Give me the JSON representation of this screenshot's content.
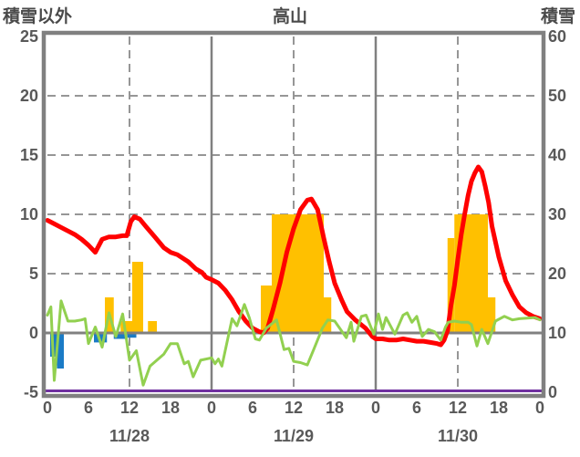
{
  "header": {
    "left_axis_title": "積雪以外",
    "chart_title": "高山",
    "right_axis_title": "積雪"
  },
  "colors": {
    "red_line": "#FF0000",
    "green_line": "#92D050",
    "orange_bars": "#FFC000",
    "blue_bars": "#1B7BC6",
    "purple_line": "#7030A0",
    "frame": "#808080",
    "grid": "#969696",
    "text": "#595959"
  },
  "chart_data": {
    "type": "line+bar",
    "title": "高山",
    "left_axis": {
      "label": "積雪以外",
      "min": -5,
      "max": 25,
      "ticks": [
        25,
        20,
        15,
        10,
        5,
        0,
        -5
      ]
    },
    "right_axis": {
      "label": "積雪",
      "min": 0,
      "max": 60,
      "ticks": [
        60,
        50,
        40,
        30,
        20,
        10,
        0
      ]
    },
    "x_axis": {
      "unit": "hour",
      "span_hours": 72,
      "ticks": [
        {
          "h": 0,
          "label": "0"
        },
        {
          "h": 6,
          "label": "6"
        },
        {
          "h": 12,
          "label": "12"
        },
        {
          "h": 18,
          "label": "18"
        },
        {
          "h": 24,
          "label": "0"
        },
        {
          "h": 30,
          "label": "6"
        },
        {
          "h": 36,
          "label": "12"
        },
        {
          "h": 42,
          "label": "18"
        },
        {
          "h": 48,
          "label": "0"
        },
        {
          "h": 54,
          "label": "6"
        },
        {
          "h": 60,
          "label": "12"
        },
        {
          "h": 66,
          "label": "18"
        },
        {
          "h": 72,
          "label": "0"
        }
      ],
      "dates": [
        {
          "h": 12,
          "label": "11/28"
        },
        {
          "h": 36,
          "label": "11/29"
        },
        {
          "h": 60,
          "label": "11/30"
        }
      ]
    },
    "grid": {
      "horizontal_dashed_values": [
        5,
        10,
        15,
        20
      ],
      "vertical_solid_hours": [
        24,
        48
      ],
      "vertical_dashed_hours": [
        12,
        36,
        60
      ],
      "zero_line_value": 0
    },
    "series": {
      "red_line": {
        "name": "temperature-red-line",
        "axis": "left",
        "points": [
          [
            0,
            9.5
          ],
          [
            1,
            9.2
          ],
          [
            2,
            8.9
          ],
          [
            3,
            8.6
          ],
          [
            4,
            8.3
          ],
          [
            5,
            7.9
          ],
          [
            6,
            7.4
          ],
          [
            7,
            6.8
          ],
          [
            8,
            7.9
          ],
          [
            9,
            8.1
          ],
          [
            10,
            8.1
          ],
          [
            11,
            8.2
          ],
          [
            11.6,
            8.2
          ],
          [
            12.2,
            9.4
          ],
          [
            12.7,
            9.8
          ],
          [
            13.5,
            9.6
          ],
          [
            14.5,
            8.9
          ],
          [
            15.7,
            8.1
          ],
          [
            17,
            7.2
          ],
          [
            18,
            6.8
          ],
          [
            19,
            6.6
          ],
          [
            20.6,
            6.0
          ],
          [
            21.7,
            5.4
          ],
          [
            22.6,
            5.1
          ],
          [
            23.2,
            4.7
          ],
          [
            24,
            4.5
          ],
          [
            25,
            4.2
          ],
          [
            26,
            3.6
          ],
          [
            27,
            2.8
          ],
          [
            28,
            1.8
          ],
          [
            29,
            1.0
          ],
          [
            30,
            0.4
          ],
          [
            31,
            0.1
          ],
          [
            31.6,
            0.0
          ],
          [
            32.2,
            0.4
          ],
          [
            33,
            2.0
          ],
          [
            34,
            4.2
          ],
          [
            35,
            6.8
          ],
          [
            36,
            8.8
          ],
          [
            37,
            10.4
          ],
          [
            38,
            11.2
          ],
          [
            38.6,
            11.3
          ],
          [
            39.5,
            10.4
          ],
          [
            40.4,
            8.0
          ],
          [
            41.2,
            6.0
          ],
          [
            42,
            4.2
          ],
          [
            43,
            2.8
          ],
          [
            43.8,
            1.8
          ],
          [
            45,
            1.1
          ],
          [
            46.5,
            0.4
          ],
          [
            47.5,
            -0.3
          ],
          [
            48,
            -0.5
          ],
          [
            49,
            -0.5
          ],
          [
            50,
            -0.6
          ],
          [
            51,
            -0.6
          ],
          [
            52,
            -0.5
          ],
          [
            53,
            -0.6
          ],
          [
            54,
            -0.7
          ],
          [
            55,
            -0.7
          ],
          [
            56,
            -0.8
          ],
          [
            57,
            -0.9
          ],
          [
            57.5,
            -1.0
          ],
          [
            58,
            -0.6
          ],
          [
            58.5,
            0.2
          ],
          [
            59,
            2.3
          ],
          [
            59.5,
            4.0
          ],
          [
            60,
            6.2
          ],
          [
            60.5,
            8.3
          ],
          [
            61,
            10.0
          ],
          [
            61.5,
            11.6
          ],
          [
            62,
            12.8
          ],
          [
            62.5,
            13.5
          ],
          [
            63,
            14.0
          ],
          [
            63.5,
            13.6
          ],
          [
            64,
            12.4
          ],
          [
            64.5,
            11.0
          ],
          [
            65,
            9.0
          ],
          [
            66,
            6.4
          ],
          [
            67,
            4.4
          ],
          [
            68,
            3.2
          ],
          [
            69,
            2.2
          ],
          [
            70,
            1.7
          ],
          [
            71,
            1.4
          ],
          [
            72,
            1.2
          ]
        ]
      },
      "green_line": {
        "name": "green-jagged-line",
        "axis": "left",
        "points": [
          [
            0,
            1.5
          ],
          [
            0.5,
            2.2
          ],
          [
            1,
            -4.0
          ],
          [
            2,
            2.7
          ],
          [
            3,
            1.0
          ],
          [
            4,
            1.0
          ],
          [
            5,
            1.1
          ],
          [
            5.5,
            1.2
          ],
          [
            6,
            -0.9
          ],
          [
            7,
            0.5
          ],
          [
            8,
            -1.2
          ],
          [
            9,
            1.7
          ],
          [
            10,
            -0.3
          ],
          [
            11,
            1.6
          ],
          [
            12,
            -2.3
          ],
          [
            13,
            -1.5
          ],
          [
            14,
            -4.4
          ],
          [
            15,
            -2.8
          ],
          [
            16,
            -2.3
          ],
          [
            17,
            -1.8
          ],
          [
            18,
            -0.9
          ],
          [
            19,
            -0.9
          ],
          [
            20,
            -2.6
          ],
          [
            20.6,
            -2.4
          ],
          [
            21.3,
            -3.7
          ],
          [
            22.4,
            -2.3
          ],
          [
            24,
            -2.1
          ],
          [
            24.5,
            -2.6
          ],
          [
            25,
            -2.2
          ],
          [
            25.5,
            -2.8
          ],
          [
            27,
            1.2
          ],
          [
            27.7,
            0.6
          ],
          [
            28.8,
            2.4
          ],
          [
            29.5,
            1.3
          ],
          [
            30.4,
            -0.5
          ],
          [
            31,
            -0.6
          ],
          [
            32,
            0.4
          ],
          [
            33.5,
            1.1
          ],
          [
            34.6,
            -1.4
          ],
          [
            35.3,
            -1.3
          ],
          [
            36,
            -2.4
          ],
          [
            37,
            -2.5
          ],
          [
            38,
            -2.7
          ],
          [
            39,
            -1.3
          ],
          [
            40.2,
            0.4
          ],
          [
            41,
            1.1
          ],
          [
            42,
            1.0
          ],
          [
            43.7,
            -0.4
          ],
          [
            44.4,
            0.9
          ],
          [
            44.8,
            -0.7
          ],
          [
            45.9,
            1.4
          ],
          [
            46.6,
            1.5
          ],
          [
            47.7,
            -0.1
          ],
          [
            48.4,
            1.6
          ],
          [
            49,
            0.3
          ],
          [
            49.5,
            1.3
          ],
          [
            50.8,
            -0.1
          ],
          [
            52,
            1.5
          ],
          [
            52.6,
            1.7
          ],
          [
            53.3,
            0.9
          ],
          [
            54,
            1.4
          ],
          [
            54.8,
            -0.3
          ],
          [
            55.7,
            0.3
          ],
          [
            56.6,
            0.1
          ],
          [
            57.5,
            -0.6
          ],
          [
            58.2,
            0.5
          ],
          [
            58.6,
            0.9
          ],
          [
            59.5,
            1.0
          ],
          [
            60.5,
            0.9
          ],
          [
            61.5,
            0.9
          ],
          [
            62,
            0.7
          ],
          [
            62.8,
            -1.1
          ],
          [
            63.5,
            0.3
          ],
          [
            64.4,
            -0.9
          ],
          [
            65.5,
            1.0
          ],
          [
            66.8,
            1.4
          ],
          [
            68,
            1.1
          ],
          [
            69,
            1.2
          ],
          [
            71.3,
            1.3
          ],
          [
            72,
            1.1
          ]
        ]
      },
      "orange_bars": {
        "name": "precipitation-orange-bars",
        "axis": "left",
        "segments": [
          {
            "from": 8.4,
            "to": 9.7,
            "value": 3
          },
          {
            "from": 10.7,
            "to": 12.4,
            "value": 1
          },
          {
            "from": 12.4,
            "to": 14.0,
            "value": 6
          },
          {
            "from": 14.7,
            "to": 16.0,
            "value": 1
          },
          {
            "from": 31.2,
            "to": 32.8,
            "value": 4
          },
          {
            "from": 32.8,
            "to": 40.4,
            "value": 10
          },
          {
            "from": 40.4,
            "to": 41.5,
            "value": 3
          },
          {
            "from": 58.5,
            "to": 59.5,
            "value": 8
          },
          {
            "from": 59.5,
            "to": 64.4,
            "value": 10
          },
          {
            "from": 64.4,
            "to": 65.5,
            "value": 3
          }
        ]
      },
      "blue_bars": {
        "name": "blue-negative-bars",
        "axis": "left",
        "segments": [
          {
            "from": 0.4,
            "to": 1.4,
            "value": -2
          },
          {
            "from": 1.4,
            "to": 2.4,
            "value": -3
          },
          {
            "from": 6.8,
            "to": 8.7,
            "value": -0.8
          },
          {
            "from": 9.7,
            "to": 11.7,
            "value": -0.5
          },
          {
            "from": 11.7,
            "to": 13.0,
            "value": -0.4
          }
        ]
      },
      "purple_line": {
        "name": "snow-depth-purple-line",
        "axis": "right",
        "right_axis_value": 0,
        "points": [
          [
            0,
            -5
          ],
          [
            72,
            -5
          ]
        ]
      }
    }
  }
}
